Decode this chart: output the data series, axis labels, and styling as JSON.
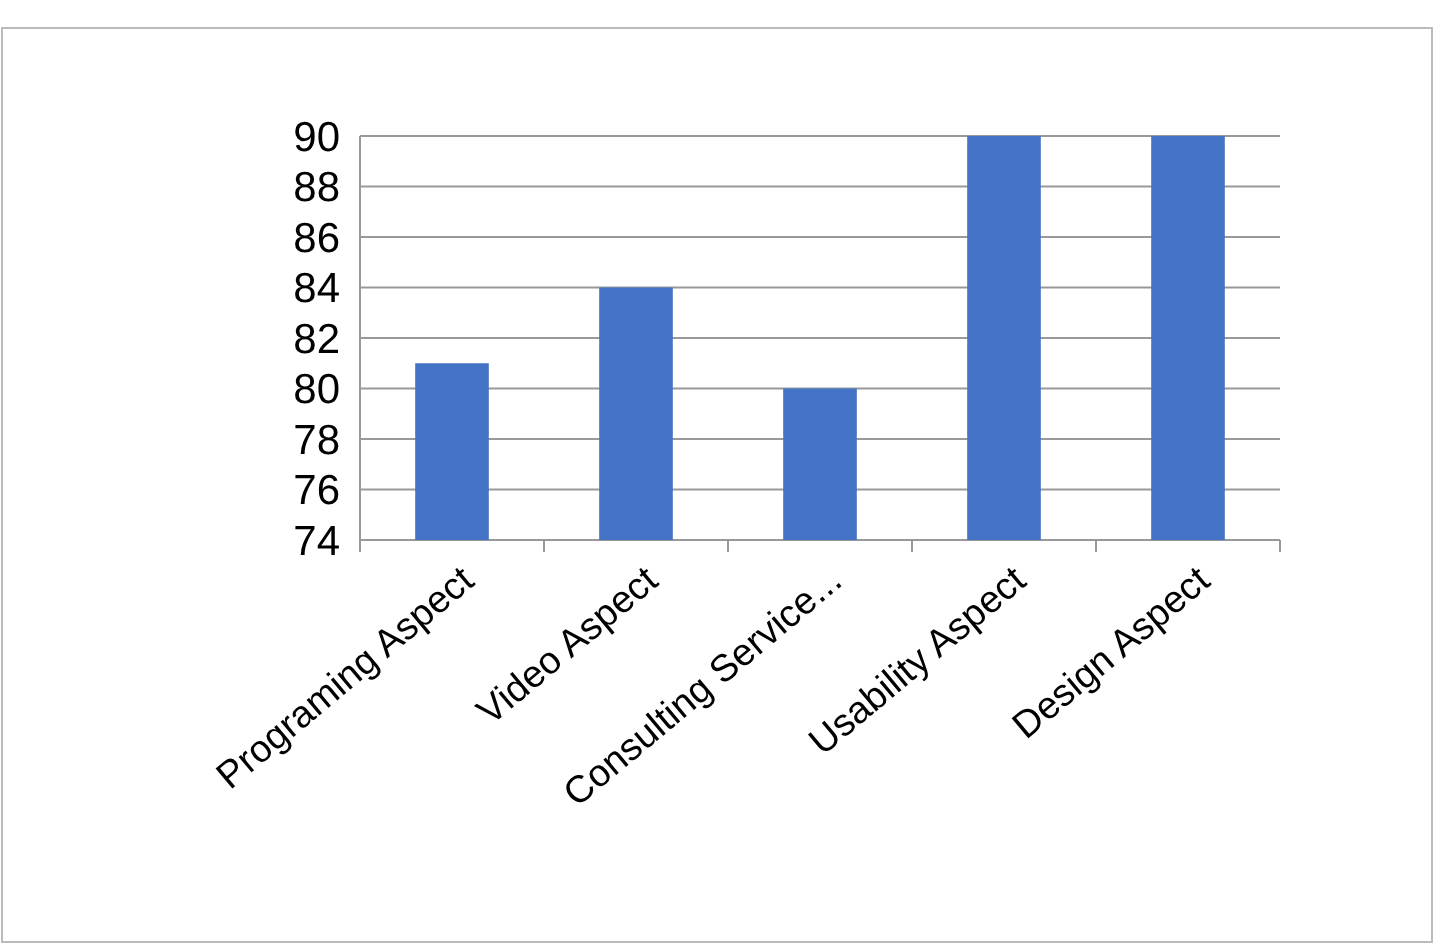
{
  "chart_data": {
    "type": "bar",
    "categories": [
      "Programing Aspect",
      "Video Aspect",
      "Consulting Service...",
      "Usability Aspect",
      "Design Aspect"
    ],
    "values": [
      81,
      84,
      80,
      90,
      90
    ],
    "color": "#4472c4",
    "ylim": [
      74,
      90
    ],
    "yticks": [
      74,
      76,
      78,
      80,
      82,
      84,
      86,
      88,
      90
    ],
    "grid": "y"
  }
}
